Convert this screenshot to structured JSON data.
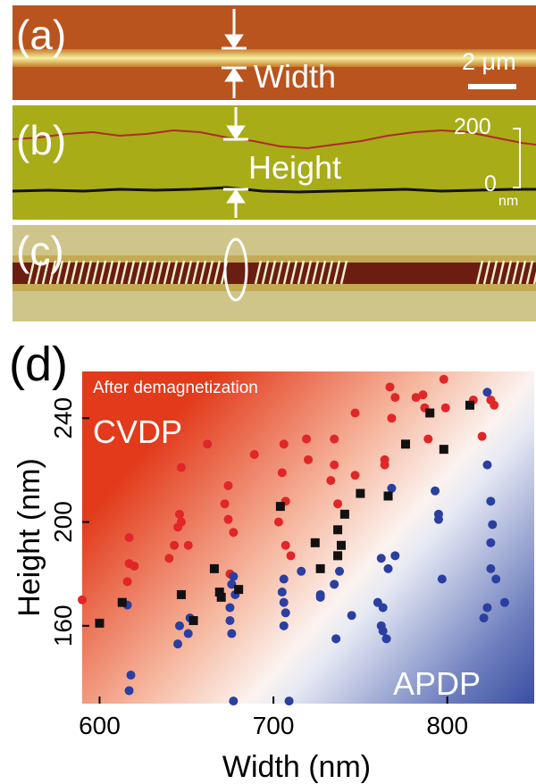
{
  "panels": {
    "a": {
      "label": "(a)",
      "annotation": "Width",
      "scalebar": "2 μm"
    },
    "b": {
      "label": "(b)",
      "annotation": "Height",
      "scale_top": "200",
      "scale_bottom": "0",
      "scale_unit": "nm"
    },
    "c": {
      "label": "(c)"
    },
    "d": {
      "label": "(d)"
    }
  },
  "chart_data": {
    "type": "scatter",
    "xlabel": "Width (nm)",
    "ylabel": "Height (nm)",
    "xlim": [
      590,
      850
    ],
    "ylim": [
      130,
      258
    ],
    "xticks": [
      600,
      700,
      800
    ],
    "yticks": [
      160,
      200,
      240
    ],
    "tick_labels_x": [
      "600",
      "700",
      "800"
    ],
    "tick_labels_y": [
      "160",
      "200",
      "240"
    ],
    "annotation": "After demagnetization",
    "region_labels": [
      "CVDP",
      "APDP"
    ],
    "colors": {
      "cvdp": "#e02626",
      "apdp": "#2a3fa0",
      "black": "#111111"
    },
    "series": [
      {
        "marker": "red-circle",
        "points": [
          [
            590,
            170
          ],
          [
            617,
            194
          ],
          [
            617,
            184
          ],
          [
            620,
            183
          ],
          [
            616,
            177
          ],
          [
            640,
            186
          ],
          [
            643,
            191
          ],
          [
            647,
            200
          ],
          [
            646,
            203
          ],
          [
            645,
            198
          ],
          [
            647,
            221
          ],
          [
            651,
            191
          ],
          [
            662,
            230
          ],
          [
            672,
            207
          ],
          [
            674,
            214
          ],
          [
            674,
            201
          ],
          [
            677,
            196
          ],
          [
            675,
            180
          ],
          [
            689,
            226
          ],
          [
            703,
            200
          ],
          [
            705,
            219
          ],
          [
            706,
            230
          ],
          [
            707,
            208
          ],
          [
            707,
            191
          ],
          [
            710,
            187
          ],
          [
            719,
            232
          ],
          [
            720,
            224
          ],
          [
            733,
            216
          ],
          [
            735,
            222
          ],
          [
            735,
            232
          ],
          [
            737,
            207
          ],
          [
            747,
            218
          ],
          [
            747,
            242
          ],
          [
            764,
            224
          ],
          [
            764,
            222
          ],
          [
            768,
            240
          ],
          [
            767,
            252
          ],
          [
            770,
            248
          ],
          [
            782,
            248
          ],
          [
            786,
            249
          ],
          [
            787,
            244
          ],
          [
            789,
            232
          ],
          [
            798,
            255
          ],
          [
            799,
            244
          ],
          [
            815,
            247
          ],
          [
            820,
            233
          ],
          [
            825,
            247
          ],
          [
            827,
            245
          ]
        ]
      },
      {
        "marker": "blue-circle",
        "points": [
          [
            616,
            168
          ],
          [
            617,
            135
          ],
          [
            618,
            141
          ],
          [
            645,
            153
          ],
          [
            646,
            160
          ],
          [
            651,
            157
          ],
          [
            652,
            163
          ],
          [
            675,
            167
          ],
          [
            675,
            162
          ],
          [
            676,
            157
          ],
          [
            677,
            179
          ],
          [
            676,
            176
          ],
          [
            677,
            131
          ],
          [
            678,
            172
          ],
          [
            706,
            169
          ],
          [
            706,
            160
          ],
          [
            705,
            173
          ],
          [
            706,
            178
          ],
          [
            707,
            165
          ],
          [
            709,
            131
          ],
          [
            716,
            181
          ],
          [
            727,
            171
          ],
          [
            727,
            172
          ],
          [
            736,
            155
          ],
          [
            735,
            176
          ],
          [
            738,
            181
          ],
          [
            745,
            164
          ],
          [
            760,
            169
          ],
          [
            762,
            160
          ],
          [
            762,
            186
          ],
          [
            763,
            158
          ],
          [
            763,
            167
          ],
          [
            766,
            182
          ],
          [
            765,
            155
          ],
          [
            768,
            213
          ],
          [
            770,
            187
          ],
          [
            793,
            212
          ],
          [
            795,
            203
          ],
          [
            795,
            201
          ],
          [
            797,
            178
          ],
          [
            821,
            163
          ],
          [
            823,
            167
          ],
          [
            823,
            222
          ],
          [
            825,
            208
          ],
          [
            825,
            192
          ],
          [
            826,
            199
          ],
          [
            825,
            182
          ],
          [
            828,
            178
          ],
          [
            833,
            169
          ],
          [
            823,
            250
          ]
        ]
      },
      {
        "marker": "black-square",
        "points": [
          [
            600,
            161
          ],
          [
            613,
            169
          ],
          [
            647,
            172
          ],
          [
            654,
            162
          ],
          [
            666,
            182
          ],
          [
            669,
            173
          ],
          [
            670,
            171
          ],
          [
            680,
            174
          ],
          [
            704,
            206
          ],
          [
            724,
            192
          ],
          [
            727,
            182
          ],
          [
            737,
            187
          ],
          [
            737,
            197
          ],
          [
            739,
            191
          ],
          [
            741,
            203
          ],
          [
            750,
            211
          ],
          [
            766,
            210
          ],
          [
            776,
            230
          ],
          [
            790,
            242
          ],
          [
            798,
            228
          ],
          [
            813,
            245
          ]
        ]
      }
    ]
  }
}
